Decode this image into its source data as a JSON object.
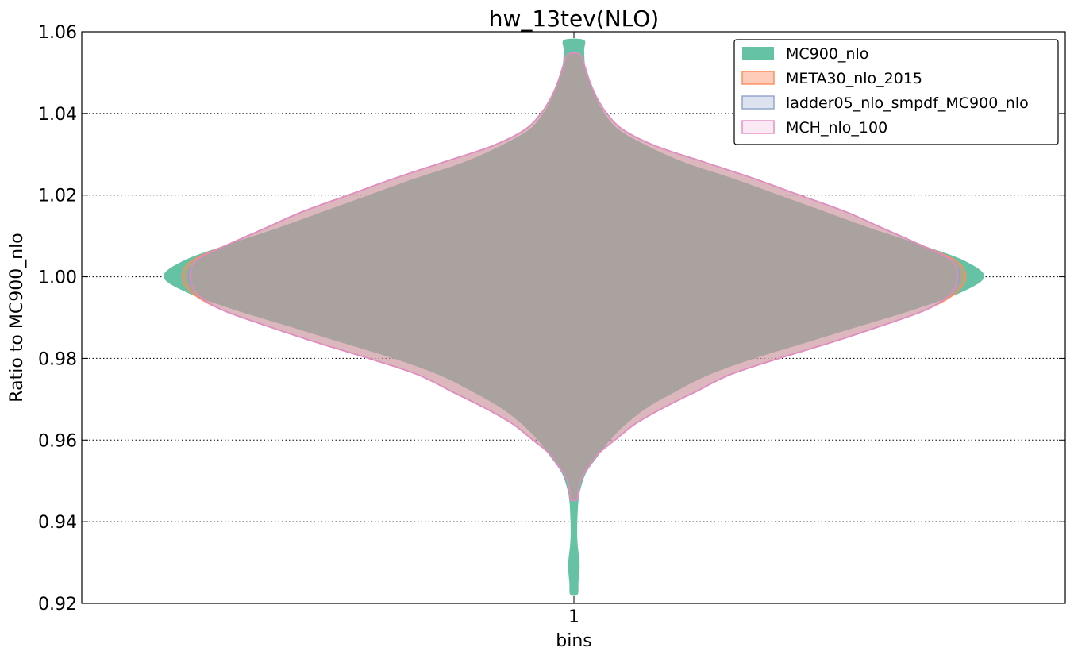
{
  "chart_data": {
    "type": "violin",
    "title": "hw_13tev(NLO)",
    "xlabel": "bins",
    "ylabel": "Ratio to MC900_nlo",
    "categories": [
      "1"
    ],
    "ylim": [
      0.92,
      1.06
    ],
    "yticks": [
      "0.92",
      "0.94",
      "0.96",
      "0.98",
      "1.00",
      "1.02",
      "1.04",
      "1.06"
    ],
    "grid": true,
    "legend_position": "top-right",
    "series": [
      {
        "name": "MC900_nlo",
        "color": "#66c2a5",
        "edge": "#66c2a5",
        "opacity": 1.0,
        "profile": [
          [
            0.9222,
            0.009
          ],
          [
            0.925,
            0.011
          ],
          [
            0.9285,
            0.014
          ],
          [
            0.931,
            0.013
          ],
          [
            0.9345,
            0.009
          ],
          [
            0.938,
            0.008
          ],
          [
            0.942,
            0.009
          ],
          [
            0.945,
            0.011
          ],
          [
            0.948,
            0.016
          ],
          [
            0.952,
            0.03
          ],
          [
            0.956,
            0.058
          ],
          [
            0.96,
            0.088
          ],
          [
            0.964,
            0.128
          ],
          [
            0.968,
            0.18
          ],
          [
            0.972,
            0.25
          ],
          [
            0.976,
            0.33
          ],
          [
            0.98,
            0.44
          ],
          [
            0.984,
            0.57
          ],
          [
            0.988,
            0.7
          ],
          [
            0.992,
            0.83
          ],
          [
            0.996,
            0.94
          ],
          [
            1.0,
            1.0
          ],
          [
            1.004,
            0.95
          ],
          [
            1.008,
            0.84
          ],
          [
            1.012,
            0.72
          ],
          [
            1.016,
            0.61
          ],
          [
            1.02,
            0.5
          ],
          [
            1.024,
            0.39
          ],
          [
            1.028,
            0.27
          ],
          [
            1.032,
            0.18
          ],
          [
            1.036,
            0.11
          ],
          [
            1.04,
            0.075
          ],
          [
            1.044,
            0.053
          ],
          [
            1.048,
            0.037
          ],
          [
            1.052,
            0.027
          ],
          [
            1.0555,
            0.025
          ],
          [
            1.058,
            0.024
          ]
        ]
      },
      {
        "name": "META30_nlo_2015",
        "color": "#fc8d62",
        "edge": "#fc8d62",
        "opacity": 0.45,
        "profile": [
          [
            0.9455,
            0.008
          ],
          [
            0.948,
            0.011
          ],
          [
            0.951,
            0.02
          ],
          [
            0.954,
            0.04
          ],
          [
            0.957,
            0.063
          ],
          [
            0.96,
            0.1
          ],
          [
            0.964,
            0.15
          ],
          [
            0.968,
            0.22
          ],
          [
            0.972,
            0.3
          ],
          [
            0.976,
            0.38
          ],
          [
            0.98,
            0.5
          ],
          [
            0.984,
            0.63
          ],
          [
            0.988,
            0.75
          ],
          [
            0.992,
            0.86
          ],
          [
            0.996,
            0.93
          ],
          [
            1.0,
            0.955
          ],
          [
            1.004,
            0.93
          ],
          [
            1.008,
            0.84
          ],
          [
            1.012,
            0.75
          ],
          [
            1.016,
            0.66
          ],
          [
            1.02,
            0.55
          ],
          [
            1.024,
            0.44
          ],
          [
            1.028,
            0.32
          ],
          [
            1.032,
            0.2
          ],
          [
            1.036,
            0.12
          ],
          [
            1.04,
            0.08
          ],
          [
            1.044,
            0.055
          ],
          [
            1.048,
            0.038
          ],
          [
            1.052,
            0.025
          ],
          [
            1.0545,
            0.014
          ]
        ]
      },
      {
        "name": "ladder05_nlo_smpdf_MC900_nlo",
        "color": "#8da0cb",
        "edge": "#8da0cb",
        "opacity": 0.3,
        "profile": [
          [
            0.9455,
            0.008
          ],
          [
            0.948,
            0.011
          ],
          [
            0.951,
            0.02
          ],
          [
            0.954,
            0.04
          ],
          [
            0.957,
            0.063
          ],
          [
            0.96,
            0.1
          ],
          [
            0.964,
            0.15
          ],
          [
            0.968,
            0.22
          ],
          [
            0.972,
            0.3
          ],
          [
            0.976,
            0.38
          ],
          [
            0.98,
            0.5
          ],
          [
            0.984,
            0.63
          ],
          [
            0.988,
            0.75
          ],
          [
            0.992,
            0.86
          ],
          [
            0.996,
            0.92
          ],
          [
            1.0,
            0.94
          ],
          [
            1.004,
            0.92
          ],
          [
            1.008,
            0.84
          ],
          [
            1.012,
            0.75
          ],
          [
            1.016,
            0.66
          ],
          [
            1.02,
            0.55
          ],
          [
            1.024,
            0.44
          ],
          [
            1.028,
            0.32
          ],
          [
            1.032,
            0.2
          ],
          [
            1.036,
            0.12
          ],
          [
            1.04,
            0.08
          ],
          [
            1.044,
            0.055
          ],
          [
            1.048,
            0.038
          ],
          [
            1.052,
            0.025
          ],
          [
            1.0545,
            0.014
          ]
        ]
      },
      {
        "name": "MCH_nlo_100",
        "color": "#e78ac3",
        "edge": "#e78ac3",
        "opacity": 0.12,
        "profile": [
          [
            0.9455,
            0.008
          ],
          [
            0.948,
            0.011
          ],
          [
            0.951,
            0.02
          ],
          [
            0.954,
            0.04
          ],
          [
            0.957,
            0.063
          ],
          [
            0.96,
            0.1
          ],
          [
            0.964,
            0.15
          ],
          [
            0.968,
            0.22
          ],
          [
            0.972,
            0.3
          ],
          [
            0.976,
            0.38
          ],
          [
            0.98,
            0.5
          ],
          [
            0.984,
            0.63
          ],
          [
            0.988,
            0.75
          ],
          [
            0.992,
            0.86
          ],
          [
            0.996,
            0.92
          ],
          [
            1.0,
            0.935
          ],
          [
            1.004,
            0.92
          ],
          [
            1.008,
            0.84
          ],
          [
            1.012,
            0.75
          ],
          [
            1.016,
            0.66
          ],
          [
            1.02,
            0.55
          ],
          [
            1.024,
            0.44
          ],
          [
            1.028,
            0.32
          ],
          [
            1.032,
            0.2
          ],
          [
            1.036,
            0.12
          ],
          [
            1.04,
            0.08
          ],
          [
            1.044,
            0.055
          ],
          [
            1.048,
            0.038
          ],
          [
            1.052,
            0.025
          ],
          [
            1.0545,
            0.014
          ]
        ]
      }
    ]
  }
}
